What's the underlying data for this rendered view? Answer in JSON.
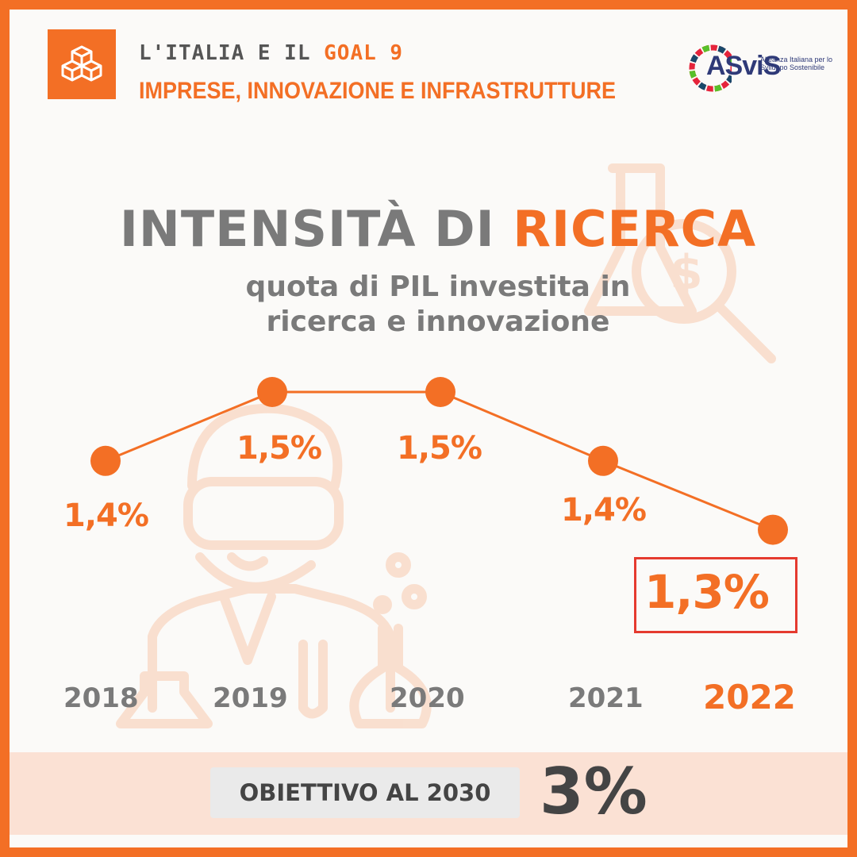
{
  "header": {
    "line1_prefix": "L'ITALIA E IL ",
    "line1_goal": "GOAL 9",
    "line2": "IMPRESE, INNOVAZIONE E INFRASTRUTTURE",
    "goal_icon": "cubes-icon"
  },
  "logo": {
    "text": "ASviS",
    "subtitle": "Alleanza Italiana per lo Sviluppo Sostenibile"
  },
  "title": {
    "part1": "INTENSITÀ DI ",
    "part2": "RICERCA"
  },
  "subtitle": {
    "line1": "quota di PIL investita in",
    "line2": "ricerca e innovazione"
  },
  "chart_data": {
    "type": "line",
    "x": [
      "2018",
      "2019",
      "2020",
      "2021",
      "2022"
    ],
    "values": [
      1.4,
      1.5,
      1.5,
      1.4,
      1.3
    ],
    "value_labels": [
      "1,4%",
      "1,5%",
      "1,5%",
      "1,4%",
      "1,3%"
    ],
    "highlight_index": 4
  },
  "target": {
    "label": "OBIETTIVO AL 2030",
    "value": "3%"
  },
  "colors": {
    "accent": "#f36f25",
    "text_grey": "#7a7a7a",
    "highlight_border": "#e53a2f",
    "band": "#fbe1d4"
  }
}
